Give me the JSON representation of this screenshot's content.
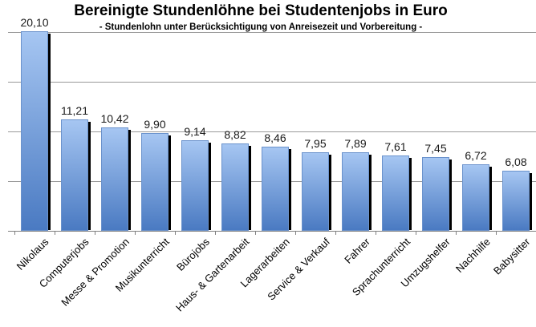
{
  "chart_data": {
    "type": "bar",
    "title": "Bereinigte Stundenlöhne bei Studentenjobs in Euro",
    "subtitle": "- Stundenlohn unter Berücksichtigung von Anreisezeit und Vorbereitung -",
    "categories": [
      "Nikolaus",
      "Computerjobs",
      "Messe & Promotion",
      "Musikunterricht",
      "Bürojobs",
      "Haus- & Gartenarbeit",
      "Lagerarbeiten",
      "Service & Verkauf",
      "Fahrer",
      "Sprachunterricht",
      "Umzugshelfer",
      "Nachhilfe",
      "Babysitter"
    ],
    "values": [
      20.1,
      11.21,
      10.42,
      9.9,
      9.14,
      8.82,
      8.46,
      7.95,
      7.89,
      7.61,
      7.45,
      6.72,
      6.08
    ],
    "value_labels": [
      "20,10",
      "11,21",
      "10,42",
      "9,90",
      "9,14",
      "8,82",
      "8,46",
      "7,95",
      "7,89",
      "7,61",
      "7,45",
      "6,72",
      "6,08"
    ],
    "xlabel": "",
    "ylabel": "",
    "ylim": [
      0,
      20
    ],
    "gridline_step": 5,
    "grid": true,
    "legend": false,
    "colors": {
      "bar_gradient_top": "#A6C6F2",
      "bar_gradient_bottom": "#4A7AC2",
      "bar_border": "#6A92CC",
      "bar_shadow": "#000000",
      "gridline": "#999999",
      "axis": "#808080",
      "text": "#000000",
      "value_label": "#1A1A1A",
      "background": "#FFFFFF"
    }
  }
}
